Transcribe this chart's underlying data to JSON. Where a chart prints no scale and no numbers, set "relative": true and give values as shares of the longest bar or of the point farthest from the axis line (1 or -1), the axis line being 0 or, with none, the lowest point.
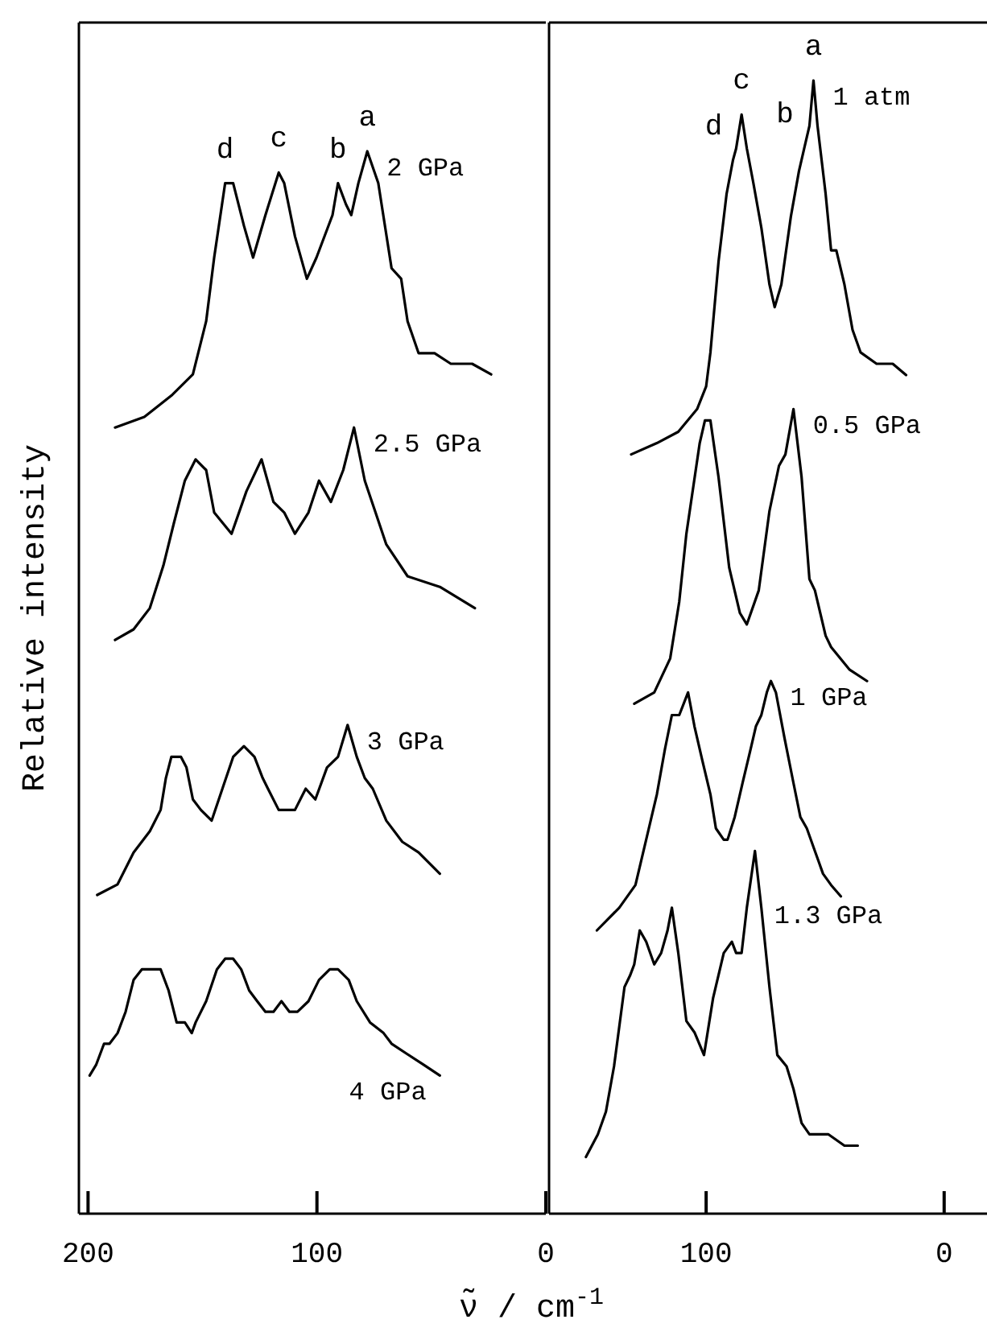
{
  "chart_data": [
    {
      "type": "line",
      "relative": true,
      "ylabel": "Relative intensity",
      "xlabel": "ν̃ / cm$^{-1}$",
      "xlim": [
        204,
        0
      ],
      "xticks": [
        200,
        100,
        0
      ],
      "legend": false,
      "series": [
        {
          "name": "2 GPa",
          "color": "#000000",
          "x": [
            188.2,
            175.4,
            163.6,
            154.2,
            148.4,
            144.9,
            140.1,
            136.6,
            131.9,
            127.9,
            122.5,
            116.7,
            114.3,
            109.6,
            104.4,
            100.2,
            93.2,
            90.8,
            87.3,
            85.0,
            81.9,
            78.0,
            73.2,
            67.4,
            63.2,
            60.4,
            55.6,
            48.6,
            41.5,
            32.2,
            23.9
          ],
          "values": [
            0.74,
            0.75,
            0.77,
            0.79,
            0.84,
            0.9,
            0.97,
            0.97,
            0.93,
            0.9,
            0.94,
            0.98,
            0.97,
            0.92,
            0.88,
            0.9,
            0.94,
            0.97,
            0.95,
            0.94,
            0.97,
            1.0,
            0.97,
            0.89,
            0.88,
            0.84,
            0.81,
            0.81,
            0.8,
            0.8,
            0.79
          ]
        },
        {
          "name": "2.5 GPa",
          "color": "#000000",
          "x": [
            188.2,
            180.1,
            173.0,
            167.1,
            162.5,
            157.7,
            153.0,
            148.4,
            144.9,
            137.3,
            130.8,
            124.2,
            119.0,
            114.3,
            109.6,
            103.7,
            99.1,
            93.9,
            88.5,
            83.8,
            79.1,
            74.4,
            69.7,
            60.4,
            46.3,
            31.0
          ],
          "values": [
            0.54,
            0.55,
            0.57,
            0.61,
            0.65,
            0.69,
            0.71,
            0.7,
            0.66,
            0.64,
            0.68,
            0.71,
            0.67,
            0.66,
            0.64,
            0.66,
            0.69,
            0.67,
            0.7,
            0.74,
            0.69,
            0.66,
            0.63,
            0.6,
            0.59,
            0.57
          ]
        },
        {
          "name": "3 GPa",
          "color": "#000000",
          "x": [
            196.0,
            187.1,
            180.1,
            173.0,
            168.3,
            166.0,
            163.6,
            161.3,
            159.4,
            157.0,
            154.2,
            150.7,
            146.0,
            141.3,
            136.6,
            131.9,
            127.3,
            123.7,
            121.4,
            116.7,
            113.2,
            109.6,
            104.9,
            100.7,
            95.6,
            90.8,
            86.6,
            82.6,
            79.1,
            75.6,
            69.7,
            62.7,
            55.6,
            46.3
          ],
          "values": [
            0.3,
            0.31,
            0.34,
            0.36,
            0.38,
            0.41,
            0.43,
            0.43,
            0.43,
            0.42,
            0.39,
            0.38,
            0.37,
            0.4,
            0.43,
            0.44,
            0.43,
            0.41,
            0.4,
            0.38,
            0.38,
            0.38,
            0.4,
            0.39,
            0.42,
            0.43,
            0.46,
            0.43,
            0.41,
            0.4,
            0.37,
            0.35,
            0.34,
            0.32
          ]
        },
        {
          "name": "4 GPa",
          "color": "#000000",
          "x": [
            199.3,
            196.5,
            193.0,
            190.6,
            187.1,
            183.6,
            180.1,
            176.5,
            172.5,
            168.3,
            164.8,
            161.3,
            157.7,
            154.7,
            153.0,
            148.4,
            143.7,
            140.1,
            136.6,
            133.1,
            129.6,
            126.1,
            122.5,
            119.0,
            115.5,
            112.0,
            108.5,
            103.7,
            99.1,
            94.4,
            90.8,
            86.1,
            82.6,
            76.8,
            70.9,
            67.4,
            60.4,
            53.3,
            46.3
          ],
          "values": [
            0.13,
            0.14,
            0.16,
            0.16,
            0.17,
            0.19,
            0.22,
            0.23,
            0.23,
            0.23,
            0.21,
            0.18,
            0.18,
            0.17,
            0.18,
            0.2,
            0.23,
            0.24,
            0.24,
            0.23,
            0.21,
            0.2,
            0.19,
            0.19,
            0.2,
            0.19,
            0.19,
            0.2,
            0.22,
            0.23,
            0.23,
            0.22,
            0.2,
            0.18,
            0.17,
            0.16,
            0.15,
            0.14,
            0.13
          ]
        }
      ],
      "annotations": [
        {
          "text": "d",
          "x": 140.1,
          "y": 0.97
        },
        {
          "text": "c",
          "x": 116.7,
          "y": 0.98
        },
        {
          "text": "b",
          "x": 90.8,
          "y": 0.97
        },
        {
          "text": "a",
          "x": 78.0,
          "y": 1.0
        }
      ]
    },
    {
      "type": "line",
      "relative": true,
      "xlim": [
        166,
        -18
      ],
      "xticks": [
        100,
        0
      ],
      "legend": false,
      "series": [
        {
          "name": "1 atm",
          "color": "#000000",
          "x": [
            131.5,
            120.7,
            111.7,
            103.8,
            100.0,
            98.2,
            94.8,
            91.4,
            88.7,
            87.4,
            85.1,
            82.9,
            80.2,
            76.8,
            73.4,
            71.2,
            68.4,
            64.4,
            61.0,
            58.8,
            56.6,
            54.9,
            53.2,
            49.8,
            47.5,
            45.3,
            41.9,
            38.5,
            35.1,
            28.4,
            21.6,
            16.0
          ],
          "values": [
            0.67,
            0.68,
            0.69,
            0.71,
            0.73,
            0.76,
            0.84,
            0.9,
            0.93,
            0.94,
            0.97,
            0.94,
            0.91,
            0.87,
            0.82,
            0.8,
            0.82,
            0.88,
            0.92,
            0.94,
            0.96,
            1.0,
            0.96,
            0.9,
            0.85,
            0.85,
            0.82,
            0.78,
            0.76,
            0.75,
            0.75,
            0.74
          ]
        },
        {
          "name": "0.5 GPa",
          "color": "#000000",
          "x": [
            130.2,
            121.8,
            115.1,
            111.3,
            108.3,
            102.7,
            100.5,
            98.2,
            94.8,
            90.3,
            85.8,
            82.9,
            77.9,
            73.4,
            69.4,
            66.7,
            63.3,
            59.9,
            56.6,
            54.3,
            49.8,
            47.5,
            39.7,
            32.4
          ],
          "values": [
            0.45,
            0.46,
            0.49,
            0.54,
            0.6,
            0.68,
            0.7,
            0.7,
            0.65,
            0.57,
            0.53,
            0.52,
            0.55,
            0.62,
            0.66,
            0.67,
            0.71,
            0.65,
            0.56,
            0.55,
            0.51,
            0.5,
            0.48,
            0.47
          ]
        },
        {
          "name": "1 GPa",
          "color": "#000000",
          "x": [
            145.9,
            136.5,
            129.7,
            125.2,
            120.7,
            117.3,
            114.4,
            111.3,
            107.6,
            104.9,
            101.6,
            98.2,
            95.9,
            92.6,
            91.0,
            88.0,
            84.7,
            81.3,
            79.1,
            76.8,
            74.5,
            72.8,
            70.7,
            67.1,
            63.3,
            60.4,
            57.7,
            54.3,
            50.9,
            47.5,
            43.4
          ],
          "values": [
            0.25,
            0.27,
            0.29,
            0.33,
            0.37,
            0.41,
            0.44,
            0.44,
            0.46,
            0.43,
            0.4,
            0.37,
            0.34,
            0.33,
            0.33,
            0.35,
            0.38,
            0.41,
            0.43,
            0.44,
            0.46,
            0.47,
            0.46,
            0.42,
            0.38,
            0.35,
            0.34,
            0.32,
            0.3,
            0.29,
            0.28
          ]
        },
        {
          "name": "1.3 GPa",
          "color": "#000000",
          "x": [
            150.5,
            145.5,
            142.1,
            138.7,
            134.3,
            132.0,
            130.2,
            127.9,
            125.2,
            121.8,
            118.9,
            116.2,
            114.4,
            111.7,
            108.3,
            104.9,
            100.9,
            97.1,
            92.6,
            89.2,
            87.4,
            85.1,
            82.9,
            79.5,
            76.8,
            73.4,
            70.1,
            66.2,
            63.3,
            59.9,
            56.6,
            48.6,
            41.9,
            36.3
          ],
          "values": [
            0.05,
            0.07,
            0.09,
            0.13,
            0.2,
            0.21,
            0.22,
            0.25,
            0.24,
            0.22,
            0.23,
            0.25,
            0.27,
            0.23,
            0.17,
            0.16,
            0.14,
            0.19,
            0.23,
            0.24,
            0.23,
            0.23,
            0.27,
            0.32,
            0.27,
            0.2,
            0.14,
            0.13,
            0.11,
            0.08,
            0.07,
            0.07,
            0.06,
            0.06
          ]
        }
      ],
      "annotations": [
        {
          "text": "a",
          "x": 54.9,
          "y": 1.0
        },
        {
          "text": "c",
          "x": 85.1,
          "y": 0.97
        },
        {
          "text": "b",
          "x": 58.8,
          "y": 0.94
        },
        {
          "text": "d",
          "x": 88.7,
          "y": 0.93
        }
      ]
    }
  ]
}
